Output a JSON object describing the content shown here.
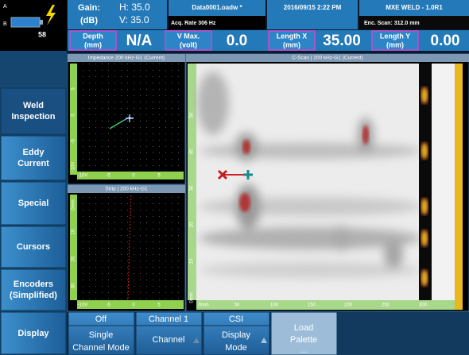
{
  "status": {
    "a": "A",
    "b": "B",
    "level": "58"
  },
  "header": {
    "gain_label": "Gain:",
    "gain_unit": "(dB)",
    "h_gain": "H: 35.0",
    "v_gain": "V: 35.0",
    "file": "Data0001.oadw *",
    "acq_rate": "Acq. Rate 306  Hz",
    "datetime": "2016/09/15 2:22 PM",
    "title": "MXE WELD - 1.0R1",
    "enc_scan": "Enc. Scan:  312.0 mm"
  },
  "readouts": [
    {
      "label": "Depth",
      "unit": "(mm)",
      "value": "N/A"
    },
    {
      "label": "V Max.",
      "unit": "(volt)",
      "value": "0.0"
    },
    {
      "label": "Length X",
      "unit": "(mm)",
      "value": "35.00"
    },
    {
      "label": "Length Y",
      "unit": "(mm)",
      "value": "0.00"
    }
  ],
  "panels": {
    "impedance": {
      "title": "Impedance 200 kHz-G1 (Current)",
      "yticks": [
        "-10V",
        "-5",
        "0",
        "5"
      ],
      "xticks": [
        "-10V",
        "-5",
        "0",
        "5"
      ]
    },
    "strip": {
      "title": "Strip | 200 kHz-G1",
      "yticks": [
        "0mm",
        "10",
        "20",
        "30"
      ],
      "xticks": [
        "-10V",
        "-5",
        "0",
        "5"
      ]
    },
    "cscan": {
      "title": "C-Scan | 200 kHz-G1 (Current)",
      "yticks": [
        "0mm",
        "10",
        "20",
        "30",
        "40",
        "50"
      ],
      "xticks": [
        "0mm",
        "50",
        "100",
        "150",
        "200",
        "250",
        "300"
      ]
    }
  },
  "menu": [
    [
      "Weld",
      "Inspection"
    ],
    [
      "Eddy",
      "Current"
    ],
    [
      "Special"
    ],
    [
      "Cursors"
    ],
    [
      "Encoders",
      "(Simplified)"
    ]
  ],
  "display_button": "Display",
  "bottom_buttons": [
    [
      "Off",
      "Single",
      "Channel Mode"
    ],
    [
      "Channel 1",
      "Channel"
    ],
    [
      "CSI",
      "Display",
      "Mode"
    ],
    [
      "Load",
      "Palette",
      "..."
    ]
  ]
}
